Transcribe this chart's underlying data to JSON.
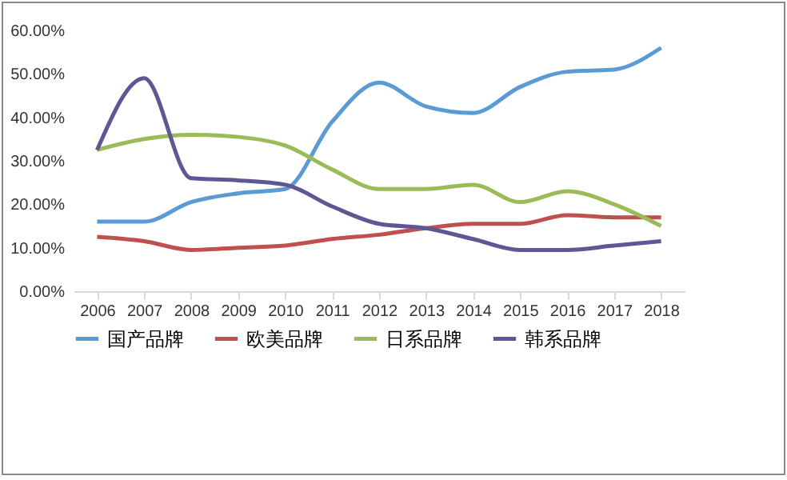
{
  "chart_data": {
    "type": "line",
    "categories": [
      "2006",
      "2007",
      "2008",
      "2009",
      "2010",
      "2011",
      "2012",
      "2013",
      "2014",
      "2015",
      "2016",
      "2017",
      "2018"
    ],
    "series": [
      {
        "name": "国产品牌",
        "color": "#5b9bd5",
        "values": [
          16,
          16,
          20.5,
          22.5,
          23.5,
          39,
          48,
          42.5,
          41,
          47,
          50.5,
          51,
          56
        ]
      },
      {
        "name": "欧美品牌",
        "color": "#c0504d",
        "values": [
          12.5,
          11.5,
          9.5,
          10,
          10.5,
          12,
          13,
          14.5,
          15.5,
          15.5,
          17.5,
          17,
          17
        ]
      },
      {
        "name": "日系品牌",
        "color": "#9bbb59",
        "values": [
          32.5,
          35,
          36,
          35.5,
          33.5,
          28,
          23.5,
          23.5,
          24.5,
          20.5,
          23,
          20,
          15
        ]
      },
      {
        "name": "韩系品牌",
        "color": "#5f5696",
        "values": [
          32.5,
          49,
          26,
          25.5,
          24.5,
          19.5,
          15.5,
          14.5,
          12,
          9.5,
          9.5,
          10.5,
          11.5
        ]
      }
    ],
    "ylim": [
      0,
      60
    ],
    "yticks": [
      {
        "value": 0,
        "label": "0.00%"
      },
      {
        "value": 10,
        "label": "10.00%"
      },
      {
        "value": 20,
        "label": "20.00%"
      },
      {
        "value": 30,
        "label": "30.00%"
      },
      {
        "value": 40,
        "label": "40.00%"
      },
      {
        "value": 50,
        "label": "50.00%"
      },
      {
        "value": 60,
        "label": "60.00%"
      }
    ],
    "legend": "bottom",
    "marker": "none",
    "line_style": "solid",
    "grid": false
  }
}
